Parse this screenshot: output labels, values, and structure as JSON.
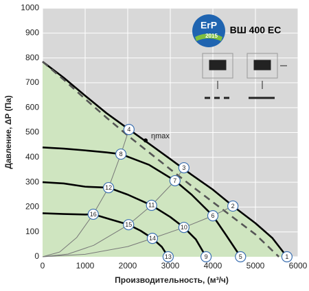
{
  "chart_data": {
    "type": "line",
    "title": "ВШ 400 ЕС",
    "logo": {
      "text": "ErP",
      "year": "2015"
    },
    "x_label": "Производительность, (м³/ч)",
    "y_label": "Давление, ΔP (Па)",
    "xlim": [
      0,
      6000
    ],
    "xticks": [
      0,
      1000,
      2000,
      3000,
      4000,
      5000,
      6000
    ],
    "ylim": [
      0,
      1000
    ],
    "yticks": [
      0,
      100,
      200,
      300,
      400,
      500,
      600,
      700,
      800,
      900,
      1000
    ],
    "grid": true,
    "area_color": "#cfe5c0",
    "series": [
      {
        "style": "thick",
        "color": "#000000",
        "fill": true,
        "x": [
          0,
          500,
          1000,
          1500,
          2000,
          2500,
          3000,
          3500,
          4000,
          4500,
          5000,
          5400,
          5740
        ],
        "values": [
          785,
          720,
          648,
          578,
          516,
          455,
          393,
          330,
          270,
          200,
          135,
          75,
          0
        ]
      },
      {
        "style": "dashed",
        "color": "#555555",
        "x": [
          0,
          500,
          1000,
          1500,
          2000,
          2500,
          3000,
          3500,
          4000,
          4500,
          5000,
          5550
        ],
        "values": [
          785,
          712,
          635,
          560,
          488,
          420,
          352,
          285,
          220,
          155,
          90,
          0
        ]
      },
      {
        "style": "thick",
        "color": "#000000",
        "x": [
          0,
          500,
          1000,
          1500,
          1840,
          2500,
          3110,
          3500,
          4000,
          4300,
          4650
        ],
        "values": [
          440,
          435,
          428,
          420,
          413,
          370,
          306,
          250,
          165,
          90,
          0
        ]
      },
      {
        "style": "thick",
        "color": "#000000",
        "x": [
          0,
          500,
          1000,
          1550,
          2000,
          2560,
          3000,
          3320,
          3600,
          3840
        ],
        "values": [
          300,
          295,
          282,
          278,
          250,
          207,
          160,
          118,
          70,
          0
        ]
      },
      {
        "style": "thick",
        "color": "#000000",
        "x": [
          0,
          500,
          1000,
          1190,
          1600,
          2020,
          2300,
          2580,
          2800,
          2950
        ],
        "values": [
          175,
          172,
          170,
          171,
          150,
          129,
          105,
          74,
          40,
          0
        ]
      },
      {
        "style": "thin",
        "color": "#777777",
        "x": [
          0,
          400,
          800,
          1190,
          1550,
          1840,
          2030
        ],
        "values": [
          0,
          19,
          77,
          171,
          278,
          413,
          512
        ]
      },
      {
        "style": "thin",
        "color": "#777777",
        "x": [
          0,
          600,
          1200,
          2020,
          2560,
          3110,
          3320
        ],
        "values": [
          0,
          11,
          46,
          129,
          207,
          306,
          358
        ]
      },
      {
        "style": "thin",
        "color": "#777777",
        "x": [
          0,
          1000,
          2000,
          2580,
          3320,
          4000,
          4470
        ],
        "values": [
          0,
          10,
          41,
          74,
          118,
          165,
          204
        ]
      }
    ],
    "points": [
      {
        "label": "1",
        "x": 5740,
        "y": 0
      },
      {
        "label": "2",
        "x": 4470,
        "y": 204
      },
      {
        "label": "3",
        "x": 3320,
        "y": 358
      },
      {
        "label": "4",
        "x": 2030,
        "y": 512
      },
      {
        "label": "5",
        "x": 4650,
        "y": 0
      },
      {
        "label": "6",
        "x": 4000,
        "y": 165
      },
      {
        "label": "7",
        "x": 3110,
        "y": 306
      },
      {
        "label": "8",
        "x": 1840,
        "y": 413
      },
      {
        "label": "9",
        "x": 3840,
        "y": 0
      },
      {
        "label": "10",
        "x": 3320,
        "y": 118
      },
      {
        "label": "11",
        "x": 2560,
        "y": 207
      },
      {
        "label": "12",
        "x": 1550,
        "y": 278
      },
      {
        "label": "13",
        "x": 2950,
        "y": 0
      },
      {
        "label": "14",
        "x": 2580,
        "y": 74
      },
      {
        "label": "15",
        "x": 2020,
        "y": 129
      },
      {
        "label": "16",
        "x": 1190,
        "y": 171
      }
    ],
    "eta_max": {
      "label": "ηmax",
      "x": 2420,
      "y": 468
    }
  }
}
